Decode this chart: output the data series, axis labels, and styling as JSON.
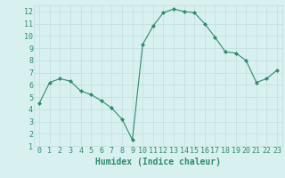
{
  "x": [
    0,
    1,
    2,
    3,
    4,
    5,
    6,
    7,
    8,
    9,
    10,
    11,
    12,
    13,
    14,
    15,
    16,
    17,
    18,
    19,
    20,
    21,
    22,
    23
  ],
  "y": [
    4.5,
    6.2,
    6.5,
    6.3,
    5.5,
    5.2,
    4.7,
    4.1,
    3.2,
    1.5,
    9.3,
    10.8,
    11.9,
    12.2,
    12.0,
    11.9,
    11.0,
    9.9,
    8.7,
    8.6,
    8.0,
    6.2,
    6.5,
    7.2
  ],
  "xlabel": "Humidex (Indice chaleur)",
  "ylim": [
    1,
    12.5
  ],
  "yticks": [
    1,
    2,
    3,
    4,
    5,
    6,
    7,
    8,
    9,
    10,
    11,
    12
  ],
  "xticks": [
    0,
    1,
    2,
    3,
    4,
    5,
    6,
    7,
    8,
    9,
    10,
    11,
    12,
    13,
    14,
    15,
    16,
    17,
    18,
    19,
    20,
    21,
    22,
    23
  ],
  "line_color": "#2e8b6e",
  "marker_color": "#2e8b6e",
  "bg_color": "#d9f0f0",
  "grid_color": "#c0dede",
  "tick_label_color": "#2e8b6e",
  "xlabel_color": "#2e8b6e",
  "xlabel_fontsize": 7,
  "tick_fontsize": 6
}
